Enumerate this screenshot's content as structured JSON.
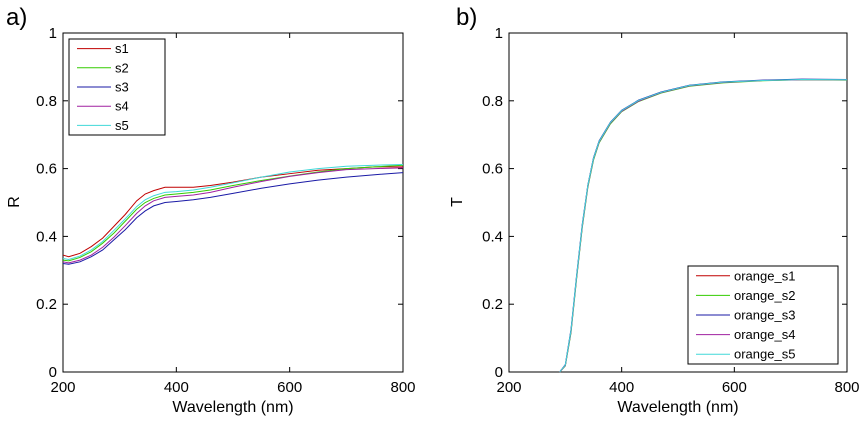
{
  "chart_data": [
    {
      "panel_label": "a)",
      "type": "line",
      "xlabel": "Wavelength (nm)",
      "ylabel": "R",
      "xlim": [
        200,
        800
      ],
      "ylim": [
        0,
        1
      ],
      "xticks": [
        200,
        400,
        600,
        800
      ],
      "yticks": [
        0,
        0.2,
        0.4,
        0.6,
        0.8,
        1
      ],
      "ytick_labels": [
        "0",
        "0.2",
        "0.4",
        "0.6",
        "0.8",
        "1"
      ],
      "legend_position": "top-left",
      "series": [
        {
          "name": "s1",
          "color": "#c00000",
          "x": [
            200,
            210,
            230,
            250,
            270,
            290,
            310,
            330,
            345,
            360,
            380,
            400,
            430,
            460,
            500,
            550,
            600,
            650,
            700,
            750,
            800
          ],
          "y": [
            0.345,
            0.34,
            0.35,
            0.37,
            0.395,
            0.43,
            0.465,
            0.505,
            0.525,
            0.535,
            0.545,
            0.545,
            0.545,
            0.55,
            0.56,
            0.575,
            0.585,
            0.595,
            0.6,
            0.605,
            0.605
          ]
        },
        {
          "name": "s2",
          "color": "#33cc00",
          "x": [
            200,
            210,
            230,
            250,
            270,
            290,
            310,
            330,
            345,
            360,
            380,
            400,
            430,
            460,
            500,
            550,
            600,
            650,
            700,
            750,
            800
          ],
          "y": [
            0.33,
            0.328,
            0.338,
            0.355,
            0.38,
            0.41,
            0.445,
            0.48,
            0.5,
            0.512,
            0.522,
            0.525,
            0.53,
            0.537,
            0.55,
            0.565,
            0.578,
            0.59,
            0.6,
            0.605,
            0.61
          ]
        },
        {
          "name": "s3",
          "color": "#1a1aa6",
          "x": [
            200,
            210,
            230,
            250,
            270,
            290,
            310,
            330,
            345,
            360,
            380,
            400,
            430,
            460,
            500,
            550,
            600,
            650,
            700,
            750,
            800
          ],
          "y": [
            0.32,
            0.318,
            0.325,
            0.34,
            0.36,
            0.39,
            0.42,
            0.455,
            0.475,
            0.49,
            0.5,
            0.503,
            0.508,
            0.515,
            0.527,
            0.542,
            0.555,
            0.566,
            0.575,
            0.582,
            0.588
          ]
        },
        {
          "name": "s4",
          "color": "#a020a0",
          "x": [
            200,
            210,
            230,
            250,
            270,
            290,
            310,
            330,
            345,
            360,
            380,
            400,
            430,
            460,
            500,
            550,
            600,
            650,
            700,
            750,
            800
          ],
          "y": [
            0.325,
            0.322,
            0.33,
            0.345,
            0.368,
            0.398,
            0.432,
            0.468,
            0.49,
            0.505,
            0.515,
            0.518,
            0.522,
            0.53,
            0.545,
            0.562,
            0.577,
            0.588,
            0.597,
            0.6,
            0.602
          ]
        },
        {
          "name": "s5",
          "color": "#40d8d8",
          "x": [
            200,
            210,
            230,
            250,
            270,
            290,
            310,
            330,
            345,
            360,
            380,
            400,
            430,
            460,
            500,
            550,
            600,
            650,
            700,
            750,
            800
          ],
          "y": [
            0.335,
            0.332,
            0.342,
            0.36,
            0.385,
            0.418,
            0.452,
            0.488,
            0.508,
            0.52,
            0.53,
            0.532,
            0.537,
            0.545,
            0.558,
            0.575,
            0.59,
            0.6,
            0.607,
            0.61,
            0.612
          ]
        }
      ]
    },
    {
      "panel_label": "b)",
      "type": "line",
      "xlabel": "Wavelength (nm)",
      "ylabel": "T",
      "xlim": [
        200,
        800
      ],
      "ylim": [
        0,
        1
      ],
      "xticks": [
        200,
        400,
        600,
        800
      ],
      "yticks": [
        0,
        0.2,
        0.4,
        0.6,
        0.8,
        1
      ],
      "ytick_labels": [
        "0",
        "0.2",
        "0.4",
        "0.6",
        "0.8",
        "1"
      ],
      "legend_position": "bottom-right",
      "series": [
        {
          "name": "orange_s1",
          "color": "#c00000",
          "x": [
            290,
            300,
            310,
            320,
            330,
            340,
            350,
            360,
            380,
            400,
            430,
            470,
            520,
            580,
            650,
            720,
            800
          ],
          "y": [
            0.0,
            0.02,
            0.12,
            0.28,
            0.43,
            0.55,
            0.63,
            0.68,
            0.735,
            0.77,
            0.8,
            0.825,
            0.845,
            0.855,
            0.86,
            0.863,
            0.862
          ]
        },
        {
          "name": "orange_s2",
          "color": "#33cc00",
          "x": [
            290,
            300,
            310,
            320,
            330,
            340,
            350,
            360,
            380,
            400,
            430,
            470,
            520,
            580,
            650,
            720,
            800
          ],
          "y": [
            0.0,
            0.018,
            0.115,
            0.275,
            0.425,
            0.545,
            0.625,
            0.676,
            0.732,
            0.768,
            0.798,
            0.823,
            0.843,
            0.853,
            0.859,
            0.862,
            0.861
          ]
        },
        {
          "name": "orange_s3",
          "color": "#1a1aa6",
          "x": [
            290,
            300,
            310,
            320,
            330,
            340,
            350,
            360,
            380,
            400,
            430,
            470,
            520,
            580,
            650,
            720,
            800
          ],
          "y": [
            0.0,
            0.022,
            0.125,
            0.285,
            0.435,
            0.552,
            0.632,
            0.682,
            0.737,
            0.772,
            0.802,
            0.826,
            0.846,
            0.856,
            0.861,
            0.864,
            0.863
          ]
        },
        {
          "name": "orange_s4",
          "color": "#a020a0",
          "x": [
            290,
            300,
            310,
            320,
            330,
            340,
            350,
            360,
            380,
            400,
            430,
            470,
            520,
            580,
            650,
            720,
            800
          ],
          "y": [
            0.0,
            0.019,
            0.118,
            0.278,
            0.428,
            0.548,
            0.628,
            0.678,
            0.734,
            0.769,
            0.799,
            0.824,
            0.844,
            0.854,
            0.86,
            0.862,
            0.862
          ]
        },
        {
          "name": "orange_s5",
          "color": "#40d8d8",
          "x": [
            290,
            300,
            310,
            320,
            330,
            340,
            350,
            360,
            380,
            400,
            430,
            470,
            520,
            580,
            650,
            720,
            800
          ],
          "y": [
            0.0,
            0.021,
            0.122,
            0.282,
            0.432,
            0.551,
            0.63,
            0.68,
            0.736,
            0.771,
            0.801,
            0.825,
            0.845,
            0.855,
            0.86,
            0.863,
            0.862
          ]
        }
      ]
    }
  ]
}
